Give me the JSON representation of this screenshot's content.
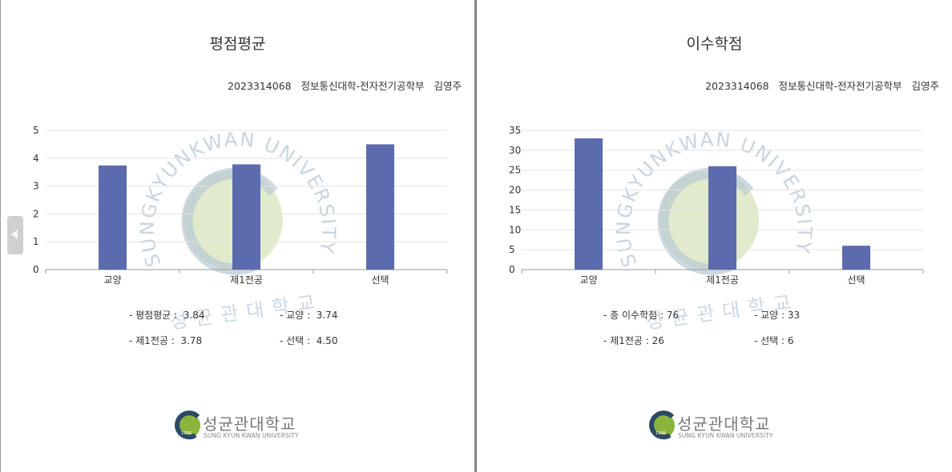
{
  "student": {
    "id": "2023314068",
    "department": "정보통신대학-전자전기공학부",
    "name": "김영주"
  },
  "left_page": {
    "title": "평점평균",
    "summary": [
      {
        "label": "- 평점평균 :",
        "value": "3.84"
      },
      {
        "label": "- 교양 :",
        "value": "3.74"
      },
      {
        "label": "- 제1전공 :",
        "value": "3.78"
      },
      {
        "label": "- 선택 :",
        "value": "4.50"
      }
    ]
  },
  "right_page": {
    "title": "이수학점",
    "summary": [
      {
        "label": "- 총 이수학점 :",
        "value": "76"
      },
      {
        "label": "- 교양 :",
        "value": "33"
      },
      {
        "label": "- 제1전공 :",
        "value": "26"
      },
      {
        "label": "- 선택 :",
        "value": "6"
      }
    ]
  },
  "watermark": {
    "ring_text": "SUNGKYUNKWAN UNIVERSITY",
    "korean_text": "성균관대학교"
  },
  "logo": {
    "korean": "성균관대학교",
    "english": "SUNG KYUN KWAN UNIVERSITY",
    "seal_text": "1398"
  },
  "colors": {
    "bar": "#5c6bad",
    "grid": "#e3e3e3",
    "axis": "#999999",
    "watermark_green": "#c9dba0",
    "watermark_blue": "#b8c7d3"
  },
  "chart_data": [
    {
      "type": "bar",
      "title": "평점평균",
      "categories": [
        "교양",
        "제1전공",
        "선택"
      ],
      "values": [
        3.74,
        3.78,
        4.5
      ],
      "ylim": [
        0,
        5
      ],
      "yticks": [
        0,
        1,
        2,
        3,
        4,
        5
      ],
      "grid": true,
      "legend": "none"
    },
    {
      "type": "bar",
      "title": "이수학점",
      "categories": [
        "교양",
        "제1전공",
        "선택"
      ],
      "values": [
        33,
        26,
        6
      ],
      "ylim": [
        0,
        35
      ],
      "yticks": [
        0,
        5,
        10,
        15,
        20,
        25,
        30,
        35
      ],
      "grid": true,
      "legend": "none"
    }
  ]
}
